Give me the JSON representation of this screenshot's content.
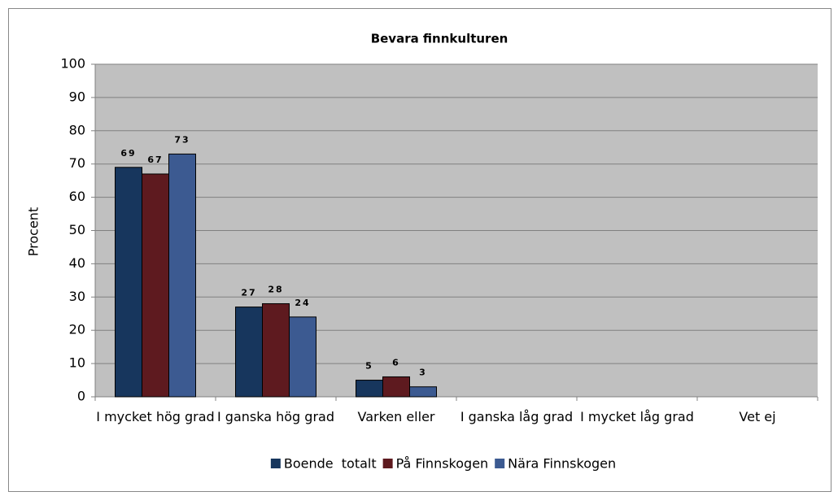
{
  "chart_data": {
    "type": "bar",
    "title": "Bevara finnkulturen",
    "y_label": "Procent",
    "categories": [
      "I mycket hög grad",
      "I ganska hög grad",
      "Varken eller",
      "I ganska låg grad",
      "I mycket låg grad",
      "Vet ej"
    ],
    "series": [
      {
        "name": "Boende  totalt",
        "color": "#17365d",
        "values": [
          69,
          27,
          5,
          null,
          null,
          null
        ]
      },
      {
        "name": "På Finnskogen",
        "color": "#5e1a1f",
        "values": [
          67,
          28,
          6,
          null,
          null,
          null
        ]
      },
      {
        "name": "Nära Finnskogen",
        "color": "#3c5a91",
        "values": [
          73,
          24,
          3,
          null,
          null,
          null
        ]
      }
    ],
    "ylim": [
      0,
      100
    ],
    "yticks": [
      0,
      10,
      20,
      30,
      40,
      50,
      60,
      70,
      80,
      90,
      100
    ],
    "grid": true,
    "legend": "bottom"
  }
}
